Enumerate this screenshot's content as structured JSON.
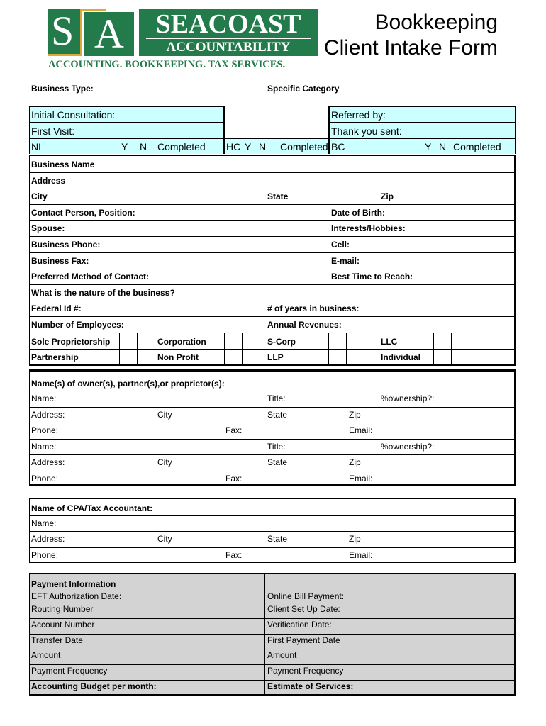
{
  "logo": {
    "letter1": "S",
    "letter2": "A",
    "name": "SEACOAST",
    "sub": "ACCOUNTABILITY",
    "tagline": "ACCOUNTING. BOOKKEEPING. TAX SERVICES.",
    "green": "#237a4b",
    "gold": "#d9a93a"
  },
  "title": {
    "line1": "Bookkeeping",
    "line2": "Client Intake Form"
  },
  "top": {
    "business_type": "Business Type:",
    "specific_category": "Specific Category"
  },
  "status": {
    "fill": "#ccffff",
    "row1": {
      "left": "Initial Consultation:",
      "right": "Referred by:"
    },
    "row2": {
      "left": "First Visit:",
      "right": "Thank you sent:"
    },
    "row3": [
      [
        "NL",
        "Y",
        "N",
        "Completed"
      ],
      [
        "HC",
        "Y",
        "N",
        "Completed"
      ],
      [
        "BC",
        "Y",
        "N",
        "Completed"
      ]
    ]
  },
  "business": {
    "rows": [
      [
        "Business Name"
      ],
      [
        "Address"
      ],
      [
        "City",
        "State",
        "Zip"
      ],
      [
        "Contact Person, Position:",
        "Date of Birth:"
      ],
      [
        "Spouse:",
        "Interests/Hobbies:"
      ],
      [
        "Business Phone:",
        "Cell:"
      ],
      [
        "Business Fax:",
        "E-mail:"
      ],
      [
        "Preferred Method of Contact:",
        "Best Time to Reach:"
      ],
      [
        "What is the nature of the business?"
      ],
      [
        "Federal Id #:",
        "# of years in business:"
      ],
      [
        "Number of Employees:",
        "Annual Revenues:"
      ]
    ],
    "entity_types": [
      [
        "Sole Proprietorship",
        "Corporation",
        "S-Corp",
        "LLC"
      ],
      [
        "Partnership",
        "Non Profit",
        "LLP",
        "Individual"
      ]
    ]
  },
  "owners": {
    "heading": "Name(s) of owner(s), partner(s),or proprietor(s):",
    "rows": [
      [
        "Name:",
        "Title:",
        "%ownership?:"
      ],
      [
        "Address:",
        "City",
        "State",
        "Zip"
      ],
      [
        "Phone:",
        "Fax:",
        "Email:"
      ],
      [
        "Name:",
        "Title:",
        "%ownership?:"
      ],
      [
        "Address:",
        "City",
        "State",
        "Zip"
      ],
      [
        "Phone:",
        "Fax:",
        "Email:"
      ]
    ]
  },
  "cpa": {
    "heading": "Name of CPA/Tax Accountant:",
    "rows": [
      [
        "Name:"
      ],
      [
        "Address:",
        "City",
        "State",
        "Zip"
      ],
      [
        "Phone:",
        "Fax:",
        "Email:"
      ]
    ]
  },
  "payment": {
    "fill": "#d3d3d3",
    "heading": "Payment Information",
    "left": [
      "EFT Authorization Date:",
      "Routing Number",
      "Account Number",
      "Transfer Date",
      "Amount",
      "Payment Frequency",
      "Accounting Budget per month:"
    ],
    "right": [
      "Online Bill Payment:",
      "Client Set Up Date:",
      "Verification Date:",
      "First Payment Date",
      "Amount",
      "Payment Frequency",
      "Estimate of Services:"
    ]
  }
}
